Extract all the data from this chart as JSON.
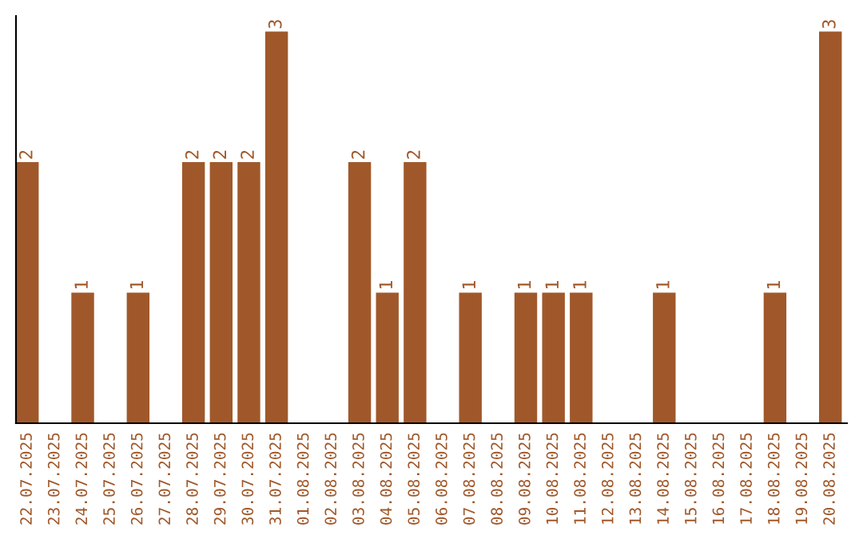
{
  "chart_data": {
    "type": "bar",
    "categories": [
      "22.07.2025",
      "23.07.2025",
      "24.07.2025",
      "25.07.2025",
      "26.07.2025",
      "27.07.2025",
      "28.07.2025",
      "29.07.2025",
      "30.07.2025",
      "31.07.2025",
      "01.08.2025",
      "02.08.2025",
      "03.08.2025",
      "04.08.2025",
      "05.08.2025",
      "06.08.2025",
      "07.08.2025",
      "08.08.2025",
      "09.08.2025",
      "10.08.2025",
      "11.08.2025",
      "12.08.2025",
      "13.08.2025",
      "14.08.2025",
      "15.08.2025",
      "16.08.2025",
      "17.08.2025",
      "18.08.2025",
      "19.08.2025",
      "20.08.2025"
    ],
    "values": [
      2,
      0,
      1,
      0,
      1,
      0,
      2,
      2,
      2,
      3,
      0,
      0,
      2,
      1,
      2,
      0,
      1,
      0,
      1,
      1,
      1,
      0,
      0,
      1,
      0,
      0,
      0,
      1,
      0,
      3
    ],
    "value_labels": [
      "2",
      null,
      "1",
      null,
      "1",
      null,
      "2",
      "2",
      "2",
      "3",
      null,
      null,
      "2",
      "1",
      "2",
      null,
      "1",
      null,
      "1",
      "1",
      "1",
      null,
      null,
      "1",
      null,
      null,
      null,
      "1",
      null,
      "3"
    ],
    "color": "#a0582a",
    "tick_labels": "x",
    "grid": false,
    "legend": false
  }
}
